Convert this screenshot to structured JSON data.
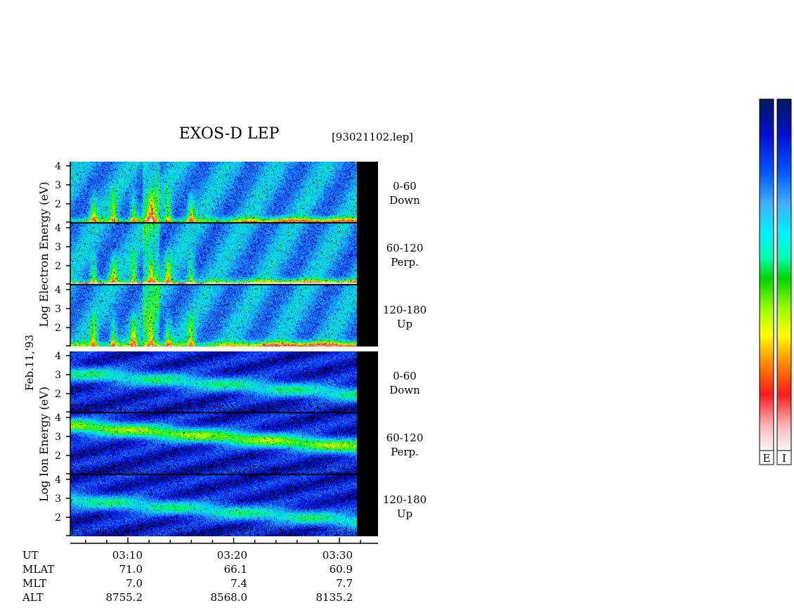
{
  "header": {
    "title": "EXOS-D LEP",
    "file_label": "[93021102.lep]",
    "date_label": "Feb.11,'93"
  },
  "chart_data": {
    "type": "heatmap",
    "description_scale": "log energy spectrogram, time on x axis",
    "x_time_ticks": [
      "03:10",
      "03:20",
      "03:30"
    ],
    "groups": [
      {
        "species": "electron",
        "ylabel": "Log Electron Energy (eV)",
        "ylabel_words": [
          "Log",
          "Electron",
          "Energy",
          "(eV)"
        ],
        "panels": [
          {
            "pitch_range": "0-60",
            "direction": "Down",
            "yticks": [
              "4",
              "3",
              "2"
            ]
          },
          {
            "pitch_range": "60-120",
            "direction": "Perp.",
            "yticks": [
              "4",
              "3",
              "2"
            ]
          },
          {
            "pitch_range": "120-180",
            "direction": "Up",
            "yticks": [
              "4",
              "3",
              "2"
            ]
          }
        ]
      },
      {
        "species": "ion",
        "ylabel": "Log Ion Energy (eV)",
        "ylabel_words": [
          "Log",
          "Ion",
          "Energy",
          "(eV)"
        ],
        "panels": [
          {
            "pitch_range": "0-60",
            "direction": "Down",
            "yticks": [
              "4",
              "3",
              "2"
            ]
          },
          {
            "pitch_range": "60-120",
            "direction": "Perp.",
            "yticks": [
              "4",
              "3",
              "2"
            ]
          },
          {
            "pitch_range": "120-180",
            "direction": "Up",
            "yticks": [
              "4",
              "3",
              "2"
            ]
          }
        ]
      }
    ],
    "ephemeris": {
      "row_labels": [
        "UT",
        "MLAT",
        "MLT",
        "ALT"
      ],
      "columns": [
        {
          "UT": "03:10",
          "MLAT": "71.0",
          "MLT": "7.0",
          "ALT": "8755.2"
        },
        {
          "UT": "03:20",
          "MLAT": "66.1",
          "MLT": "7.4",
          "ALT": "8568.0"
        },
        {
          "UT": "03:30",
          "MLAT": "60.9",
          "MLT": "7.7",
          "ALT": "8135.2"
        }
      ]
    },
    "colorbars": [
      {
        "label": "E"
      },
      {
        "label": "I"
      }
    ],
    "colorscale": [
      "#f4f4f4",
      "#ffb0b0",
      "#ff2020",
      "#ff8800",
      "#ffff00",
      "#90ff00",
      "#00e000",
      "#00ffd0",
      "#00c8ff",
      "#3090ff",
      "#0040ff",
      "#0000c8",
      "#001860"
    ]
  }
}
